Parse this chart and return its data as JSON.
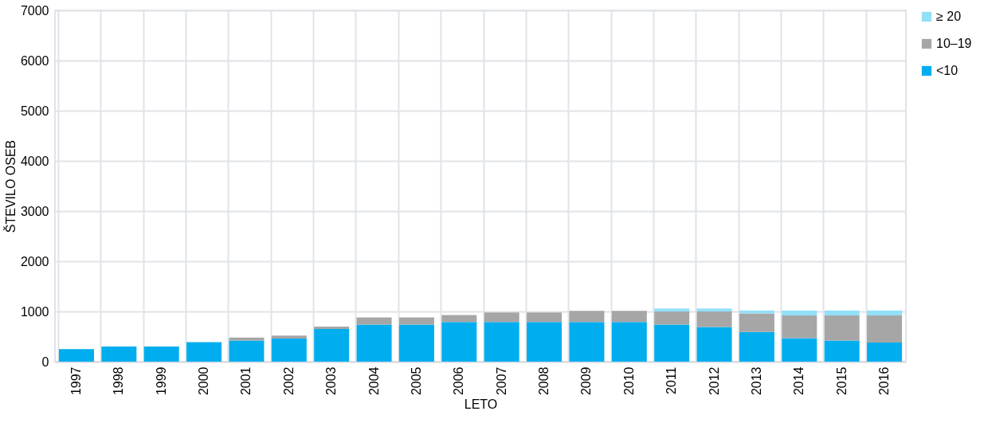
{
  "chart_data": {
    "type": "bar",
    "stacked": true,
    "xlabel": "LETO",
    "ylabel": "ŠTEVILO OSEB",
    "categories": [
      "1997",
      "1998",
      "1999",
      "2000",
      "2001",
      "2002",
      "2003",
      "2004",
      "2005",
      "2006",
      "2007",
      "2008",
      "2009",
      "2010",
      "2011",
      "2012",
      "2013",
      "2014",
      "2015",
      "2016"
    ],
    "series": [
      {
        "name": "<10",
        "color": "#00aeef",
        "values": [
          250,
          300,
          300,
          390,
          420,
          460,
          650,
          740,
          740,
          790,
          790,
          790,
          790,
          790,
          740,
          690,
          590,
          470,
          420,
          380
        ]
      },
      {
        "name": "10–19",
        "color": "#a6a6a6",
        "values": [
          null,
          null,
          null,
          null,
          60,
          60,
          50,
          140,
          140,
          140,
          190,
          190,
          220,
          220,
          260,
          310,
          370,
          450,
          500,
          540
        ]
      },
      {
        "name": "≥ 20",
        "color": "#92dff8",
        "values": [
          null,
          null,
          null,
          null,
          null,
          null,
          null,
          null,
          null,
          null,
          null,
          null,
          null,
          null,
          60,
          60,
          60,
          100,
          100,
          100
        ]
      }
    ],
    "ylim": [
      0,
      7000
    ],
    "yticks": [
      0,
      1000,
      2000,
      3000,
      4000,
      5000,
      6000,
      7000
    ],
    "grid": true,
    "legend": "right"
  }
}
